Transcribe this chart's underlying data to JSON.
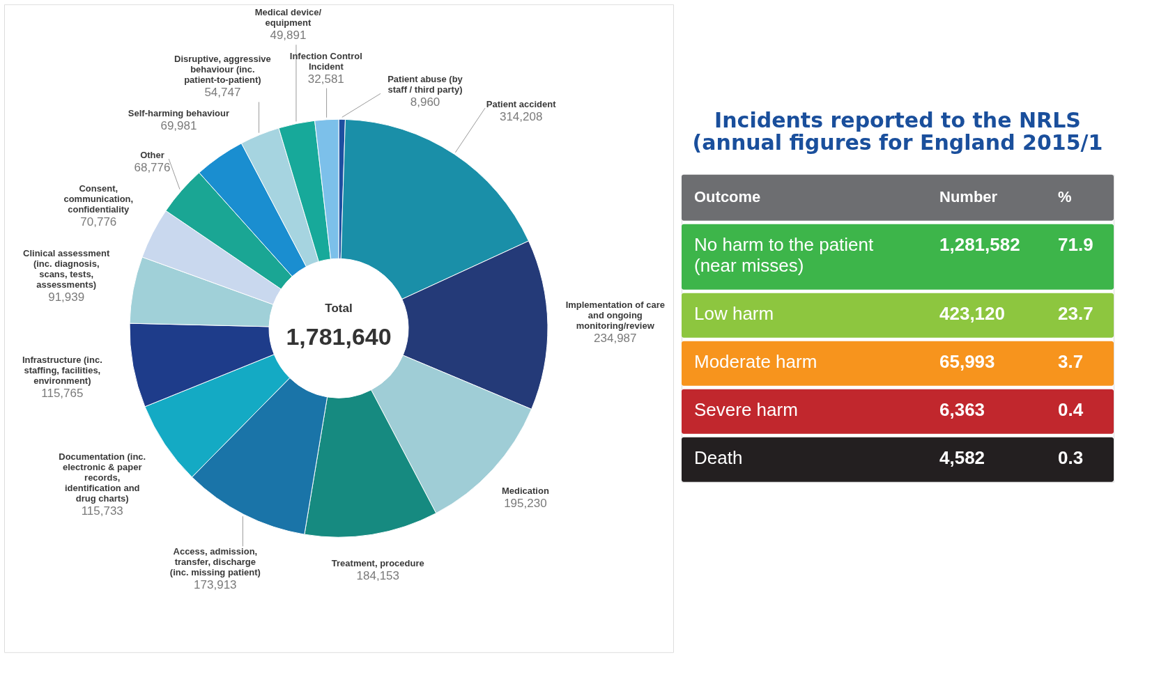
{
  "chart_data": [
    {
      "type": "donut",
      "annotations": [
        "Total",
        "1,781,640"
      ],
      "categories": [
        "Patient abuse (by staff / third party)",
        "Patient accident",
        "Implementation of care and ongoing monitoring/review",
        "Medication",
        "Treatment, procedure",
        "Access, admission, transfer, discharge (inc. missing patient)",
        "Documentation (inc. electronic & paper records, identification and drug charts)",
        "Infrastructure (inc. staffing, facilities, environment)",
        "Clinical assessment (inc. diagnosis, scans, tests, assessments)",
        "Consent, communication, confidentiality",
        "Other",
        "Self-harming behaviour",
        "Disruptive, aggressive behaviour (inc. patient-to-patient)",
        "Medical device/ equipment",
        "Infection Control Incident"
      ],
      "values": [
        8960,
        314208,
        234987,
        195230,
        184153,
        173913,
        115733,
        115765,
        91939,
        70776,
        68776,
        69981,
        54747,
        49891,
        32581
      ],
      "value_labels": [
        "8,960",
        "314,208",
        "234,987",
        "195,230",
        "184,153",
        "173,913",
        "115,733",
        "115,765",
        "91,939",
        "70,776",
        "68,776",
        "69,981",
        "54,747",
        "49,891",
        "32,581"
      ],
      "colors": [
        "#1d4fa0",
        "#1a8fa8",
        "#243a78",
        "#9fcdd6",
        "#168a80",
        "#1a74a8",
        "#14aac4",
        "#1e3c8a",
        "#a0d0d8",
        "#c9d8ee",
        "#1aa694",
        "#1a8ed0",
        "#a6d4e0",
        "#17a99a",
        "#7cc0ea"
      ]
    },
    {
      "type": "other",
      "title": "Incidents reported to the NRLS (annual figures for England 2015/1",
      "annotations": [
        "Outcome",
        "Number",
        "%",
        "No harm to the patient (near misses)",
        "1,281,582",
        "71.9",
        "Low harm",
        "423,120",
        "23.7",
        "Moderate harm",
        "65,993",
        "3.7",
        "Severe harm",
        "6,363",
        "0.4",
        "Death",
        "4,582",
        "0.3"
      ],
      "colors": [
        "#3db54a",
        "#8dc63f",
        "#f7941d",
        "#c1272d",
        "#231f20"
      ]
    }
  ]
}
